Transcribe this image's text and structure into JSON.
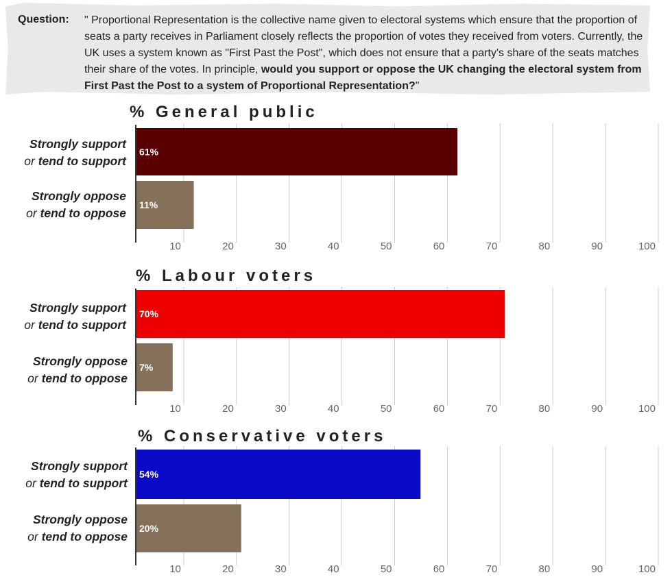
{
  "question": {
    "label": "Question:",
    "text_plain": "\" Proportional Representation is the collective name given to electoral systems which ensure that the proportion of seats a party receives in Parliament closely reflects the proportion of votes they received from voters. Currently, the UK uses a system known as \"First Past the Post\", which does not ensure that a party's share of the seats matches their share of the votes. In principle, ",
    "text_bold": "would you support or oppose the UK changing the electoral system from First Past the Post to a system of Proportional Representation?",
    "text_end": "\""
  },
  "colors": {
    "general_support": "#5a0000",
    "labour_support": "#ee0000",
    "conservative_support": "#0a0ac8",
    "oppose": "#85705a",
    "grid": "#cccccc",
    "axis": "#333333"
  },
  "chart_data": [
    {
      "type": "bar",
      "orientation": "horizontal",
      "title": "% General public",
      "categories": [
        {
          "line1": "Strongly support",
          "line2_pre": "or ",
          "line2": "tend to support"
        },
        {
          "line1": "Strongly oppose",
          "line2_pre": "or ",
          "line2": "tend to oppose"
        }
      ],
      "values": [
        61,
        11
      ],
      "value_labels": [
        "61%",
        "11%"
      ],
      "bar_colors": [
        "#5a0000",
        "#85705a"
      ],
      "ticks": [
        "10",
        "20",
        "30",
        "40",
        "50",
        "60",
        "70",
        "80",
        "90",
        "100"
      ],
      "xlim": [
        0,
        100
      ],
      "grid": true
    },
    {
      "type": "bar",
      "orientation": "horizontal",
      "title": "% Labour voters",
      "categories": [
        {
          "line1": "Strongly support",
          "line2_pre": "or ",
          "line2": "tend to support"
        },
        {
          "line1": "Strongly oppose",
          "line2_pre": "or ",
          "line2": "tend to oppose"
        }
      ],
      "values": [
        70,
        7
      ],
      "value_labels": [
        "70%",
        "7%"
      ],
      "bar_colors": [
        "#ee0000",
        "#85705a"
      ],
      "ticks": [
        "10",
        "20",
        "30",
        "40",
        "50",
        "60",
        "70",
        "80",
        "90",
        "100"
      ],
      "xlim": [
        0,
        100
      ],
      "grid": true
    },
    {
      "type": "bar",
      "orientation": "horizontal",
      "title": "% Conservative voters",
      "categories": [
        {
          "line1": "Strongly support",
          "line2_pre": "or ",
          "line2": "tend to support"
        },
        {
          "line1": "Strongly oppose",
          "line2_pre": "or ",
          "line2": "tend to oppose"
        }
      ],
      "values": [
        54,
        20
      ],
      "value_labels": [
        "54%",
        "20%"
      ],
      "bar_colors": [
        "#0a0ac8",
        "#85705a"
      ],
      "ticks": [
        "10",
        "20",
        "30",
        "40",
        "50",
        "60",
        "70",
        "80",
        "90",
        "100"
      ],
      "xlim": [
        0,
        100
      ],
      "grid": true
    }
  ]
}
